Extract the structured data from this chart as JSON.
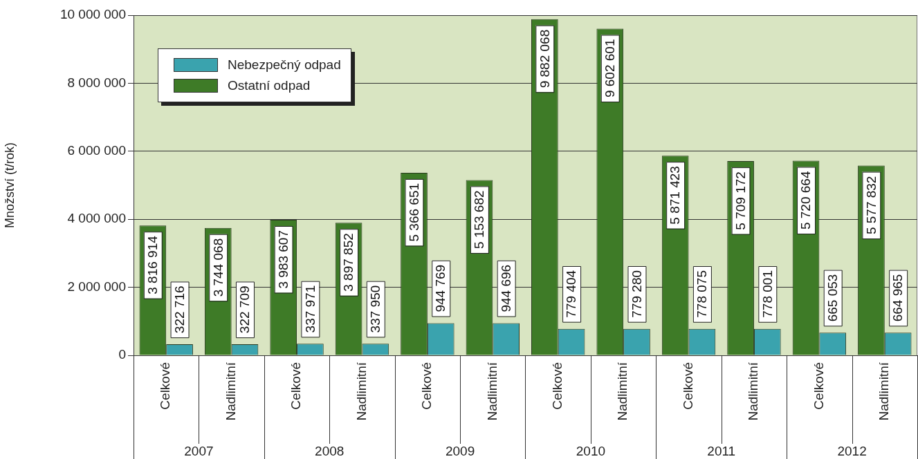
{
  "chart_data": {
    "type": "bar",
    "ylabel": "Množství (t/rok)",
    "categories": [
      "Celkové",
      "Nadlimitní",
      "Celkové",
      "Nadlimitní",
      "Celkové",
      "Nadlimitní",
      "Celkové",
      "Nadlimitní",
      "Celkové",
      "Nadlimitní",
      "Celkové",
      "Nadlimitní"
    ],
    "annotations": [
      "2007",
      "2008",
      "2009",
      "2010",
      "2011",
      "2012"
    ],
    "series": [
      {
        "name": "Ostatní odpad",
        "color": "#3e7b27",
        "values": [
          3816914,
          3744068,
          3983607,
          3897852,
          5366651,
          5153682,
          9882068,
          9602601,
          5871423,
          5709172,
          5720664,
          5577832
        ],
        "value_labels": [
          "3 816 914",
          "3 744 068",
          "3 983 607",
          "3 897 852",
          "5 366 651",
          "5 153 682",
          "9 882 068",
          "9 602 601",
          "5 871 423",
          "5 709 172",
          "5 720 664",
          "5 577 832"
        ]
      },
      {
        "name": "Nebezpečný odpad",
        "color": "#3aa3ae",
        "values": [
          322716,
          322709,
          337971,
          337950,
          944769,
          944696,
          779404,
          779280,
          778075,
          778001,
          665053,
          664965
        ],
        "value_labels": [
          "322 716",
          "322 709",
          "337 971",
          "337 950",
          "944 769",
          "944 696",
          "779 404",
          "779 280",
          "778 075",
          "778 001",
          "665 053",
          "664 965"
        ]
      }
    ],
    "ylim": [
      0,
      10000000
    ],
    "yticks": [
      {
        "value": 0,
        "label": "0"
      },
      {
        "value": 2000000,
        "label": "2 000 000"
      },
      {
        "value": 4000000,
        "label": "4 000 000"
      },
      {
        "value": 6000000,
        "label": "6 000 000"
      },
      {
        "value": 8000000,
        "label": "8 000 000"
      },
      {
        "value": 10000000,
        "label": "10 000 000"
      }
    ],
    "grid": "y",
    "legend": "top left"
  }
}
